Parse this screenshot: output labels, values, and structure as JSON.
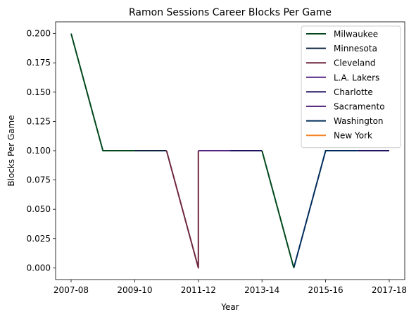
{
  "chart_data": {
    "type": "line",
    "title": "Ramon Sessions Career Blocks Per Game",
    "xlabel": "Year",
    "ylabel": "Blocks Per Game",
    "x": [
      "2007-08",
      "2008-09",
      "2009-10",
      "2010-11",
      "2011-12",
      "2012-13",
      "2013-14",
      "2014-15",
      "2015-16",
      "2016-17",
      "2017-18"
    ],
    "x_tick_labels": [
      "2007-08",
      "2009-10",
      "2011-12",
      "2013-14",
      "2015-16",
      "2017-18"
    ],
    "y_tick_labels": [
      "0.000",
      "0.025",
      "0.050",
      "0.075",
      "0.100",
      "0.125",
      "0.150",
      "0.175",
      "0.200"
    ],
    "ylim": [
      -0.01,
      0.21
    ],
    "grid": false,
    "legend_position": "top-right",
    "series": [
      {
        "name": "Milwaukee",
        "color": "#00471B",
        "points": [
          [
            "2007-08",
            0.2
          ],
          [
            "2008-09",
            0.1
          ],
          [
            "2009-10",
            0.1
          ]
        ]
      },
      {
        "name": "Minnesota",
        "color": "#0C2340",
        "points": [
          [
            "2009-10",
            0.1
          ],
          [
            "2010-11",
            0.1
          ]
        ]
      },
      {
        "name": "Cleveland",
        "color": "#6F263D",
        "points": [
          [
            "2010-11",
            0.1
          ],
          [
            "2011-12",
            0.0
          ],
          [
            "2011-12",
            0.1
          ]
        ]
      },
      {
        "name": "L.A. Lakers",
        "color": "#552583",
        "points": [
          [
            "2011-12",
            0.1
          ],
          [
            "2012-13",
            0.1
          ]
        ]
      },
      {
        "name": "Charlotte",
        "color": "#1D1160",
        "points": [
          [
            "2012-13",
            0.1
          ],
          [
            "2013-14",
            0.1
          ]
        ]
      },
      {
        "name": "Sacramento",
        "color": "#5A2D81",
        "points": []
      },
      {
        "name": "Washington",
        "color": "#002B5C",
        "points": [
          [
            "2014-15",
            0.0
          ],
          [
            "2015-16",
            0.1
          ],
          [
            "2016-17",
            0.1
          ]
        ]
      },
      {
        "name": "New York",
        "color": "#F58426",
        "points": []
      }
    ],
    "extra_segments": [
      {
        "series": "Milwaukee",
        "color": "#00471B",
        "points": [
          [
            "2013-14",
            0.1
          ],
          [
            "2014-15",
            0.0
          ]
        ]
      },
      {
        "series": "Charlotte",
        "color": "#1D1160",
        "points": [
          [
            "2016-17",
            0.1
          ],
          [
            "2017-18",
            0.1
          ]
        ]
      }
    ]
  }
}
